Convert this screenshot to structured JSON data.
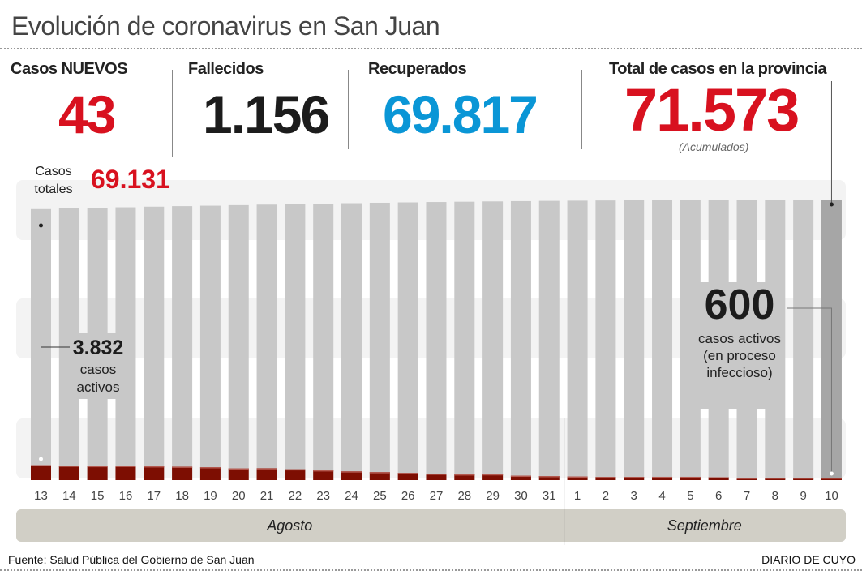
{
  "header": {
    "title": "Evolución de coronavirus en San Juan"
  },
  "stats": {
    "new_label": "Casos NUEVOS",
    "new_value": "43",
    "deaths_label": "Fallecidos",
    "deaths_value": "1.156",
    "recovered_label": "Recuperados",
    "recovered_value": "69.817",
    "total_label": "Total de casos en la provincia",
    "total_value": "71.573",
    "total_note": "(Acumulados)"
  },
  "colors": {
    "red": "#d8111f",
    "blue": "#0a96d6",
    "dark": "#1c1c1c",
    "active": "#7d0e02",
    "bar": "#c8c8c8",
    "bar_last": "#a6a6a6",
    "band": "#f3f3f3",
    "month": "#d1cfc6"
  },
  "chart_data": {
    "type": "bar",
    "title": "Evolución de coronavirus en San Juan",
    "categories": [
      "13",
      "14",
      "15",
      "16",
      "17",
      "18",
      "19",
      "20",
      "21",
      "22",
      "23",
      "24",
      "25",
      "26",
      "27",
      "28",
      "29",
      "30",
      "31",
      "1",
      "2",
      "3",
      "4",
      "5",
      "6",
      "7",
      "8",
      "9",
      "10"
    ],
    "months": [
      {
        "label": "Agosto",
        "count": 19
      },
      {
        "label": "Septiembre",
        "count": 10
      }
    ],
    "series": [
      {
        "name": "Casos totales",
        "values": [
          69131,
          69320,
          69480,
          69600,
          69760,
          69900,
          70010,
          70150,
          70280,
          70400,
          70520,
          70640,
          70750,
          70850,
          70940,
          71020,
          71100,
          71170,
          71240,
          71290,
          71340,
          71390,
          71430,
          71460,
          71490,
          71510,
          71530,
          71550,
          71573
        ]
      },
      {
        "name": "Casos activos",
        "values": [
          3832,
          3665,
          3600,
          3630,
          3530,
          3430,
          3300,
          3000,
          3030,
          2765,
          2500,
          2230,
          2030,
          1830,
          1630,
          1465,
          1500,
          1130,
          1030,
          930,
          800,
          800,
          830,
          830,
          730,
          560,
          590,
          590,
          600
        ]
      }
    ],
    "ylim": [
      0,
      71573
    ],
    "annotations": {
      "total_first_label": "Casos\ntotales",
      "total_first_value": "69.131",
      "active_first_value": "3.832",
      "active_first_text1": "casos",
      "active_first_text2": "activos",
      "active_last_value": "600",
      "active_last_text1": "casos activos",
      "active_last_text2": "(en proceso",
      "active_last_text3": "infeccioso)"
    }
  },
  "footer": {
    "source": "Fuente: Salud Pública del Gobierno de San Juan",
    "brand": "DIARIO DE CUYO"
  }
}
